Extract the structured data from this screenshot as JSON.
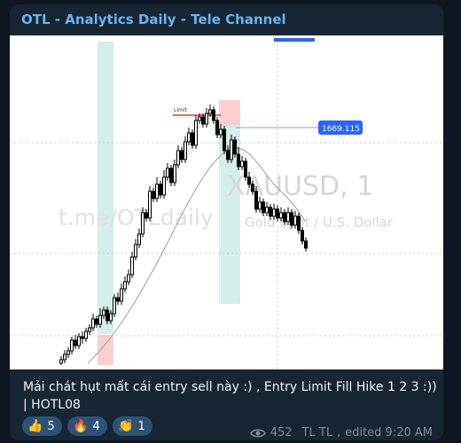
{
  "channel": {
    "title": "OTL - Analytics Daily - Tele Channel"
  },
  "chart": {
    "price_label": "1669.115",
    "limit_label": "Limit",
    "watermark_symbol": "XAUUSD, 1",
    "watermark_url": "t.me/OTLdaily",
    "watermark_desc": "Gold Spot / U.S. Dollar"
  },
  "post": {
    "caption": "Mải chát hụt mất cái entry sell này :) , Entry Limit Fill Hike 1 2 3 :)) | HOTL08"
  },
  "reactions": [
    {
      "emoji": "👍",
      "count": "5"
    },
    {
      "emoji": "🔥",
      "count": "4"
    },
    {
      "emoji": "👏",
      "count": "1"
    }
  ],
  "meta": {
    "views": "452",
    "author": "TL TL",
    "edited": "edited 9:20 AM"
  }
}
